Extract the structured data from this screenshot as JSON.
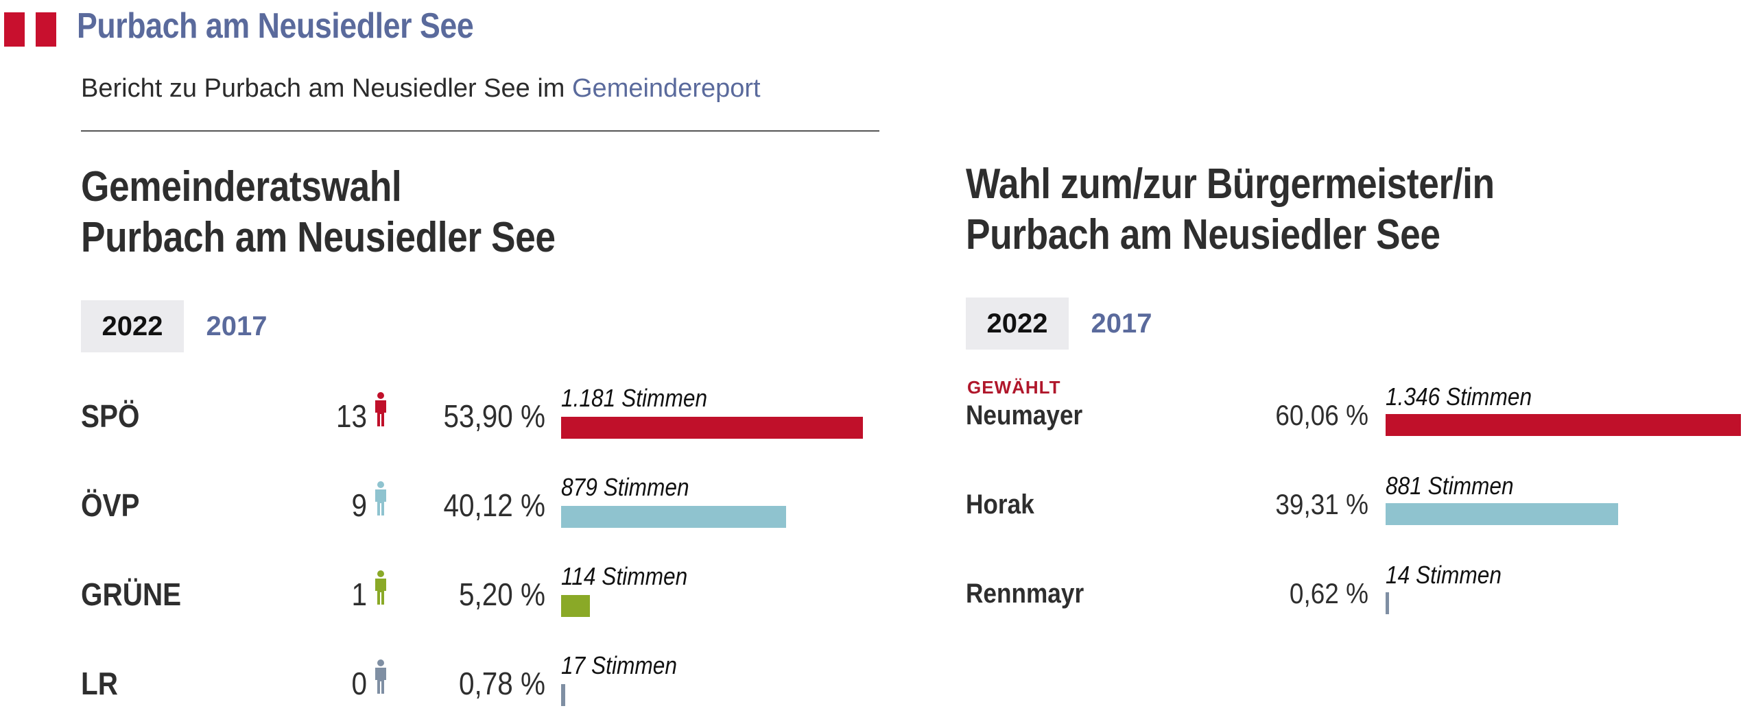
{
  "header": {
    "title": "Purbach am Neusiedler See",
    "report_prefix": "Bericht zu Purbach am Neusiedler See im",
    "report_link": "Gemeindereport",
    "flag_color": "#c8102e"
  },
  "council": {
    "title_line1": "Gemeinderatswahl",
    "title_line2": "Purbach am Neusiedler See",
    "tabs": [
      {
        "label": "2022",
        "active": true
      },
      {
        "label": "2017",
        "active": false
      }
    ],
    "parties": [
      {
        "name": "SPÖ",
        "seats": "13",
        "percent": "53,90 %",
        "votes": "1.181 Stimmen",
        "share": 53.9,
        "color": "#c0102a",
        "icon": "person-icon"
      },
      {
        "name": "ÖVP",
        "seats": "9",
        "percent": "40,12 %",
        "votes": "879 Stimmen",
        "share": 40.12,
        "color": "#8fc3cf",
        "icon": "person-icon"
      },
      {
        "name": "GRÜNE",
        "seats": "1",
        "percent": "5,20 %",
        "votes": "114 Stimmen",
        "share": 5.2,
        "color": "#8aa927",
        "icon": "person-icon"
      },
      {
        "name": "LR",
        "seats": "0",
        "percent": "0,78 %",
        "votes": "17 Stimmen",
        "share": 0.78,
        "color": "#7f8fa3",
        "icon": "person-icon"
      }
    ]
  },
  "mayor": {
    "title_line1": "Wahl zum/zur Bürgermeister/in",
    "title_line2": "Purbach am Neusiedler See",
    "tabs": [
      {
        "label": "2022",
        "active": true
      },
      {
        "label": "2017",
        "active": false
      }
    ],
    "elected_label": "GEWÄHLT",
    "candidates": [
      {
        "name": "Neumayer",
        "percent": "60,06 %",
        "votes": "1.346 Stimmen",
        "share": 60.06,
        "color": "#c0102a",
        "elected": true
      },
      {
        "name": "Horak",
        "percent": "39,31 %",
        "votes": "881 Stimmen",
        "share": 39.31,
        "color": "#8fc3cf",
        "elected": false
      },
      {
        "name": "Rennmayr",
        "percent": "0,62 %",
        "votes": "14 Stimmen",
        "share": 0.62,
        "color": "#7f8fa3",
        "elected": false
      }
    ]
  }
}
